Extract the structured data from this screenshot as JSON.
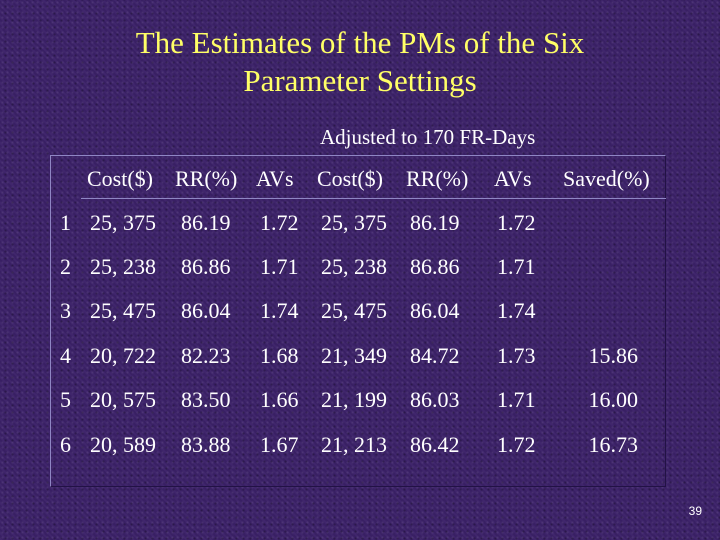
{
  "slide": {
    "title_line1": "The Estimates of the PMs of the Six",
    "title_line2": "Parameter Settings",
    "subtitle": "Adjusted to 170 FR-Days",
    "page_number": "39"
  },
  "table": {
    "headers": [
      "Cost($)",
      "RR(%)",
      "AVs",
      "Cost($)",
      "RR(%)",
      "AVs",
      "Saved(%)"
    ],
    "rows": [
      [
        "1",
        "25, 375",
        "86.19",
        "1.72",
        "25, 375",
        "86.19",
        "1.72",
        ""
      ],
      [
        "2",
        "25, 238",
        "86.86",
        "1.71",
        "25, 238",
        "86.86",
        "1.71",
        ""
      ],
      [
        "3",
        "25, 475",
        "86.04",
        "1.74",
        "25, 475",
        "86.04",
        "1.74",
        ""
      ],
      [
        "4",
        "20, 722",
        "82.23",
        "1.68",
        "21, 349",
        "84.72",
        "1.73",
        "15.86"
      ],
      [
        "5",
        "20, 575",
        "83.50",
        "1.66",
        "21, 199",
        "86.03",
        "1.71",
        "16.00"
      ],
      [
        "6",
        "20, 589",
        "83.88",
        "1.67",
        "21, 213",
        "86.42",
        "1.72",
        "16.73"
      ]
    ]
  },
  "colors": {
    "background": "#3b2168",
    "title": "#ffff66",
    "text": "#ffffff"
  }
}
